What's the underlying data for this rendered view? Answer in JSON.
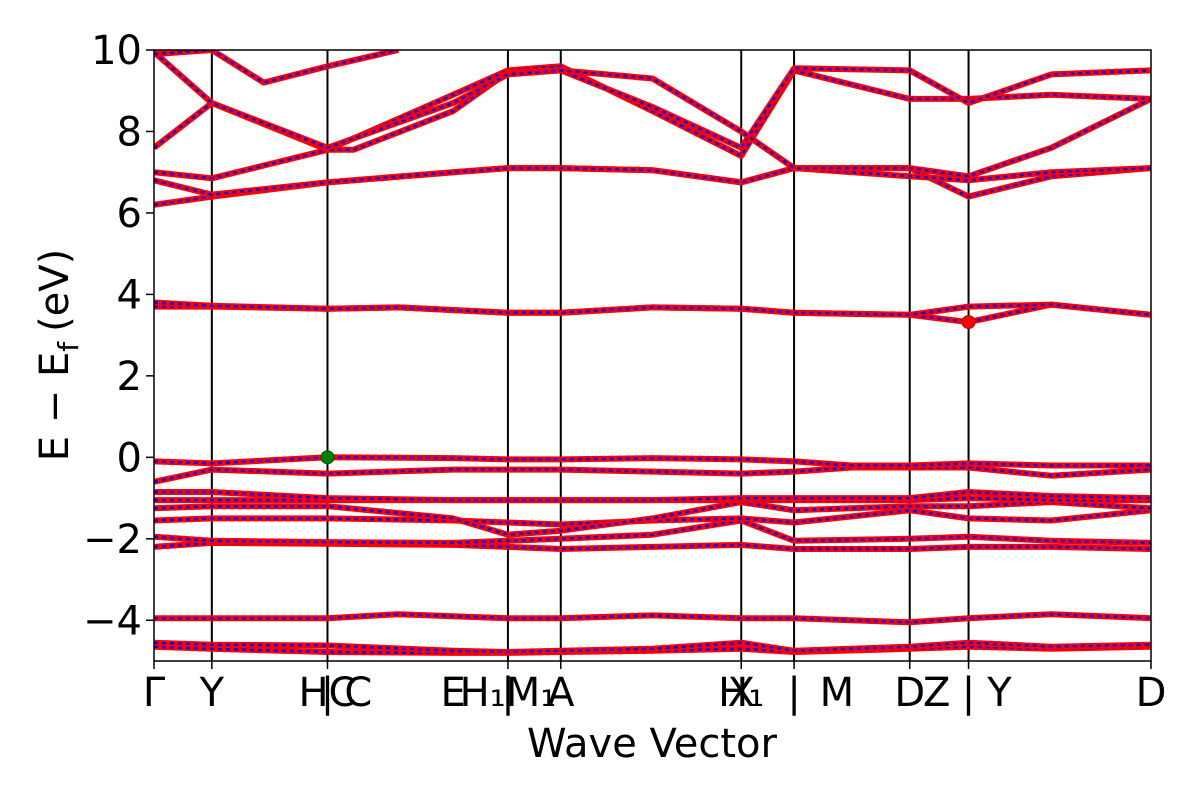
{
  "chart_data": {
    "type": "line",
    "title": "",
    "xlabel": "Wave Vector",
    "ylabel_main": "E − E",
    "ylabel_sub": "f",
    "ylabel_unit": "(eV)",
    "xlim": [
      0,
      1
    ],
    "ylim": [
      -5,
      10
    ],
    "grid": false,
    "yticks": [
      {
        "value": -4,
        "label": "−4"
      },
      {
        "value": -2,
        "label": "−2"
      },
      {
        "value": 0,
        "label": "0"
      },
      {
        "value": 2,
        "label": "2"
      },
      {
        "value": 4,
        "label": "4"
      },
      {
        "value": 6,
        "label": "6"
      },
      {
        "value": 8,
        "label": "8"
      },
      {
        "value": 10,
        "label": "10"
      }
    ],
    "kpoint_lines": [
      0.058,
      0.174,
      0.355,
      0.408,
      0.589,
      0.642,
      0.758,
      0.817
    ],
    "kpoint_labels": [
      {
        "x": 0.0,
        "label": "Γ"
      },
      {
        "x": 0.058,
        "label": "Y"
      },
      {
        "x": 0.174,
        "label": "HC"
      },
      {
        "x": 0.174,
        "label": "|"
      },
      {
        "x": 0.205,
        "label": "C"
      },
      {
        "x": 0.3,
        "label": "E"
      },
      {
        "x": 0.355,
        "label": "|"
      },
      {
        "x": 0.355,
        "label": "H₁M₁"
      },
      {
        "x": 0.408,
        "label": "A"
      },
      {
        "x": 0.589,
        "label": "X"
      },
      {
        "x": 0.589,
        "label": "H₁"
      },
      {
        "x": 0.642,
        "label": "|"
      },
      {
        "x": 0.685,
        "label": "M"
      },
      {
        "x": 0.758,
        "label": "D"
      },
      {
        "x": 0.785,
        "label": "Z"
      },
      {
        "x": 0.817,
        "label": "|"
      },
      {
        "x": 0.848,
        "label": "Y"
      },
      {
        "x": 1.0,
        "label": "D"
      }
    ],
    "series_styles": [
      {
        "color": "#ff0000",
        "dash": "solid"
      },
      {
        "color": "#0000ff",
        "dash": "dashed"
      }
    ],
    "markers": [
      {
        "x": 0.174,
        "y": 0.0,
        "color": "#008000",
        "role": "vbm"
      },
      {
        "x": 0.817,
        "y": 3.32,
        "color": "#ff0000",
        "role": "cbm"
      }
    ],
    "bands": [
      {
        "x": [
          0,
          0.058,
          0.174,
          0.3,
          0.355,
          0.408,
          0.5,
          0.589,
          0.642,
          0.758,
          0.817,
          0.9,
          1.0
        ],
        "y": [
          -4.65,
          -4.7,
          -4.78,
          -4.8,
          -4.8,
          -4.78,
          -4.75,
          -4.7,
          -4.78,
          -4.7,
          -4.65,
          -4.7,
          -4.65
        ]
      },
      {
        "x": [
          0,
          0.058,
          0.174,
          0.3,
          0.355,
          0.408,
          0.5,
          0.589,
          0.642,
          0.758,
          0.817,
          0.9,
          1.0
        ],
        "y": [
          -4.55,
          -4.6,
          -4.62,
          -4.75,
          -4.78,
          -4.75,
          -4.7,
          -4.55,
          -4.75,
          -4.65,
          -4.55,
          -4.65,
          -4.6
        ]
      },
      {
        "x": [
          0,
          0.058,
          0.174,
          0.245,
          0.355,
          0.408,
          0.5,
          0.589,
          0.642,
          0.758,
          0.817,
          0.9,
          1.0
        ],
        "y": [
          -3.95,
          -3.95,
          -3.95,
          -3.85,
          -3.95,
          -3.95,
          -3.88,
          -3.95,
          -3.95,
          -4.05,
          -3.95,
          -3.85,
          -3.95
        ]
      },
      {
        "x": [
          0,
          0.058,
          0.174,
          0.3,
          0.355,
          0.408,
          0.5,
          0.589,
          0.642,
          0.758,
          0.817,
          0.9,
          1.0
        ],
        "y": [
          -2.2,
          -2.1,
          -2.12,
          -2.15,
          -2.2,
          -2.25,
          -2.2,
          -2.15,
          -2.25,
          -2.25,
          -2.2,
          -2.2,
          -2.25
        ]
      },
      {
        "x": [
          0,
          0.058,
          0.174,
          0.3,
          0.355,
          0.408,
          0.5,
          0.589,
          0.642,
          0.758,
          0.817,
          0.9,
          1.0
        ],
        "y": [
          -1.95,
          -2.05,
          -2.08,
          -2.1,
          -2.05,
          -2.0,
          -1.9,
          -1.55,
          -2.05,
          -2.0,
          -1.95,
          -2.05,
          -2.1
        ]
      },
      {
        "x": [
          0,
          0.058,
          0.174,
          0.3,
          0.355,
          0.408,
          0.5,
          0.589,
          0.642,
          0.758,
          0.817,
          0.9,
          1.0
        ],
        "y": [
          -1.55,
          -1.5,
          -1.5,
          -1.55,
          -1.6,
          -1.65,
          -1.55,
          -1.5,
          -1.6,
          -1.3,
          -1.5,
          -1.55,
          -1.3
        ]
      },
      {
        "x": [
          0,
          0.058,
          0.174,
          0.3,
          0.355,
          0.408,
          0.5,
          0.589,
          0.642,
          0.758,
          0.817,
          0.9,
          1.0
        ],
        "y": [
          -1.25,
          -1.2,
          -1.2,
          -1.5,
          -1.9,
          -1.8,
          -1.5,
          -1.1,
          -1.3,
          -1.2,
          -1.2,
          -1.1,
          -1.25
        ]
      },
      {
        "x": [
          0,
          0.058,
          0.174,
          0.3,
          0.355,
          0.408,
          0.5,
          0.589,
          0.642,
          0.758,
          0.817,
          0.9,
          1.0
        ],
        "y": [
          -1.05,
          -1.05,
          -1.05,
          -1.05,
          -1.05,
          -1.05,
          -1.05,
          -1.05,
          -1.05,
          -1.05,
          -1.0,
          -1.05,
          -1.05
        ]
      },
      {
        "x": [
          0,
          0.058,
          0.174,
          0.3,
          0.355,
          0.408,
          0.5,
          0.589,
          0.642,
          0.758,
          0.817,
          0.9,
          1.0
        ],
        "y": [
          -0.85,
          -0.85,
          -1.0,
          -1.05,
          -1.05,
          -1.05,
          -1.05,
          -1.0,
          -1.0,
          -1.0,
          -0.85,
          -0.95,
          -1.0
        ]
      },
      {
        "x": [
          0,
          0.058,
          0.174,
          0.3,
          0.355,
          0.408,
          0.5,
          0.589,
          0.642,
          0.7,
          0.758,
          0.817,
          0.9,
          1.0
        ],
        "y": [
          -0.6,
          -0.3,
          -0.4,
          -0.3,
          -0.3,
          -0.3,
          -0.35,
          -0.4,
          -0.35,
          -0.25,
          -0.25,
          -0.25,
          -0.45,
          -0.3
        ]
      },
      {
        "x": [
          0,
          0.058,
          0.174,
          0.3,
          0.355,
          0.408,
          0.5,
          0.589,
          0.642,
          0.7,
          0.758,
          0.817,
          0.9,
          1.0
        ],
        "y": [
          -0.1,
          -0.15,
          0.0,
          -0.02,
          -0.05,
          -0.05,
          -0.02,
          -0.05,
          -0.1,
          -0.2,
          -0.2,
          -0.15,
          -0.2,
          -0.2
        ]
      },
      {
        "x": [
          0,
          0.058,
          0.174,
          0.245,
          0.355,
          0.408,
          0.5,
          0.589,
          0.642,
          0.758,
          0.817,
          0.9,
          1.0
        ],
        "y": [
          3.7,
          3.7,
          3.65,
          3.68,
          3.55,
          3.55,
          3.68,
          3.65,
          3.55,
          3.5,
          3.32,
          3.75,
          3.5
        ]
      },
      {
        "x": [
          0,
          0.058,
          0.174,
          0.245,
          0.355,
          0.408,
          0.5,
          0.589,
          0.642,
          0.758,
          0.817,
          0.9,
          1.0
        ],
        "y": [
          3.8,
          3.72,
          3.65,
          3.68,
          3.55,
          3.55,
          3.68,
          3.65,
          3.55,
          3.5,
          3.7,
          3.75,
          3.5
        ]
      },
      {
        "x": [
          0,
          0.058,
          0.174,
          0.3,
          0.355,
          0.408,
          0.5,
          0.589,
          0.642,
          0.758,
          0.817,
          0.9,
          1.0
        ],
        "y": [
          6.2,
          6.4,
          6.75,
          7.0,
          7.1,
          7.1,
          7.05,
          6.75,
          7.1,
          7.1,
          6.4,
          6.9,
          7.1
        ]
      },
      {
        "x": [
          0,
          0.058,
          0.174,
          0.3,
          0.355,
          0.408,
          0.5,
          0.589,
          0.642,
          0.758,
          0.817,
          0.9,
          1.0
        ],
        "y": [
          6.8,
          6.45,
          6.75,
          7.0,
          7.1,
          7.1,
          7.05,
          6.75,
          7.1,
          6.9,
          6.8,
          7.0,
          7.1
        ]
      },
      {
        "x": [
          0,
          0.058,
          0.174,
          0.3,
          0.355,
          0.408,
          0.5,
          0.589,
          0.642,
          0.758,
          0.817,
          0.9,
          1.0
        ],
        "y": [
          7.0,
          6.85,
          7.55,
          8.9,
          9.5,
          9.6,
          8.5,
          7.4,
          9.5,
          8.8,
          8.8,
          8.9,
          8.8
        ]
      },
      {
        "x": [
          0,
          0.058,
          0.174,
          0.2,
          0.3,
          0.355,
          0.408,
          0.5,
          0.589,
          0.642,
          0.758,
          0.817,
          0.9,
          1.0
        ],
        "y": [
          7.6,
          8.7,
          7.55,
          7.55,
          8.5,
          9.45,
          9.5,
          8.6,
          7.6,
          9.55,
          9.5,
          8.7,
          9.4,
          9.5
        ]
      },
      {
        "x": [
          0,
          0.058,
          0.174,
          0.3,
          0.355,
          0.408,
          0.5,
          0.589,
          0.642,
          0.758,
          0.817,
          0.9,
          1.0
        ],
        "y": [
          9.95,
          8.7,
          7.6,
          8.7,
          9.4,
          9.5,
          9.3,
          8.0,
          7.1,
          7.1,
          6.9,
          7.6,
          8.8
        ]
      },
      {
        "x": [
          0,
          0.058,
          0.11,
          0.174,
          0.245
        ],
        "y": [
          9.9,
          10.0,
          9.2,
          9.6,
          10.0
        ]
      }
    ]
  }
}
